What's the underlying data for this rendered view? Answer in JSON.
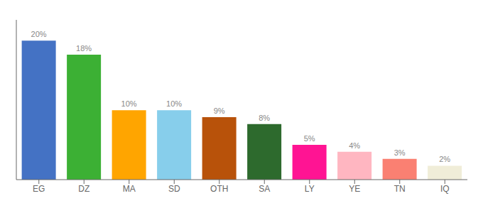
{
  "chart_data": {
    "type": "bar",
    "categories": [
      "EG",
      "DZ",
      "MA",
      "SD",
      "OTH",
      "SA",
      "LY",
      "YE",
      "TN",
      "IQ"
    ],
    "values": [
      20,
      18,
      10,
      10,
      9,
      8,
      5,
      4,
      3,
      2
    ],
    "value_labels": [
      "20%",
      "18%",
      "10%",
      "10%",
      "9%",
      "8%",
      "5%",
      "4%",
      "3%",
      "2%"
    ],
    "colors": [
      "#4472C4",
      "#3CB034",
      "#FFA500",
      "#87CEEB",
      "#B8520A",
      "#2D6A2D",
      "#FF1493",
      "#FFB6C1",
      "#FA8072",
      "#F0EDD8"
    ],
    "ylim": [
      0,
      23
    ],
    "grid": false,
    "data_labels": true,
    "tick_labels": "x"
  }
}
